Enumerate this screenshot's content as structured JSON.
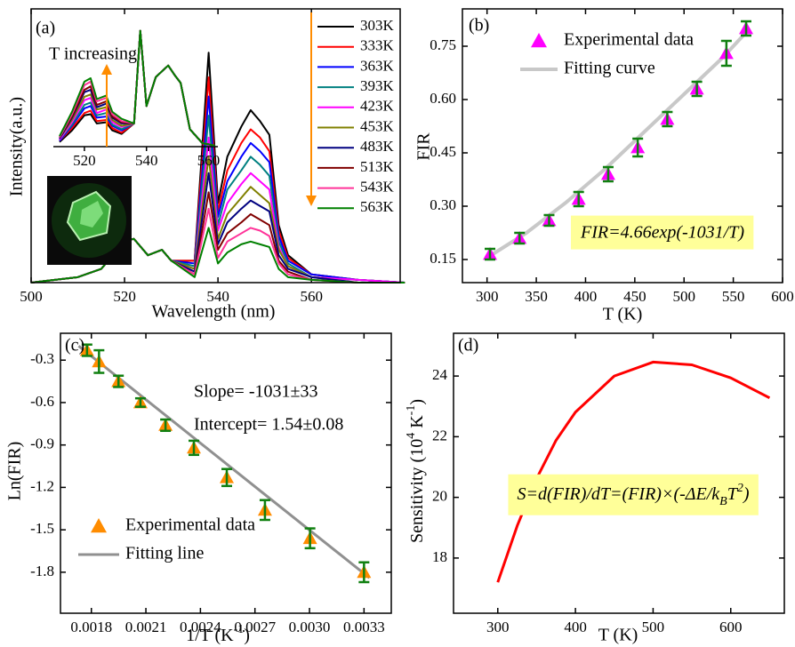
{
  "chart_data": [
    {
      "type": "line",
      "panel_label": "(a)",
      "xlabel": "Wavelength (nm)",
      "ylabel": "Intensity(a.u.)",
      "xlim": [
        500,
        579
      ],
      "ylim": [
        0,
        1
      ],
      "xticks": [
        500,
        520,
        540,
        560
      ],
      "x": [
        500,
        510,
        515,
        520,
        522,
        525,
        528,
        530,
        535,
        538,
        540,
        542,
        545,
        547,
        549,
        551,
        553,
        555,
        560,
        570,
        580
      ],
      "series": [
        {
          "name": "303K",
          "color": "#000000",
          "values": [
            0,
            0.02,
            0.05,
            0.15,
            0.16,
            0.1,
            0.12,
            0.08,
            0.08,
            0.84,
            0.29,
            0.46,
            0.57,
            0.63,
            0.59,
            0.54,
            0.21,
            0.1,
            0.03,
            0.01,
            0
          ]
        },
        {
          "name": "333K",
          "color": "#ff0000",
          "values": [
            0,
            0.02,
            0.05,
            0.15,
            0.16,
            0.1,
            0.12,
            0.08,
            0.08,
            0.75,
            0.26,
            0.41,
            0.51,
            0.56,
            0.53,
            0.48,
            0.19,
            0.09,
            0.03,
            0.01,
            0
          ]
        },
        {
          "name": "363K",
          "color": "#0000ff",
          "values": [
            0,
            0.02,
            0.05,
            0.15,
            0.16,
            0.1,
            0.12,
            0.08,
            0.07,
            0.68,
            0.24,
            0.37,
            0.46,
            0.51,
            0.48,
            0.44,
            0.17,
            0.08,
            0.03,
            0.01,
            0
          ]
        },
        {
          "name": "393K",
          "color": "#008080",
          "values": [
            0,
            0.02,
            0.05,
            0.15,
            0.16,
            0.1,
            0.12,
            0.08,
            0.06,
            0.61,
            0.21,
            0.34,
            0.41,
            0.46,
            0.43,
            0.39,
            0.15,
            0.07,
            0.02,
            0.01,
            0
          ]
        },
        {
          "name": "423K",
          "color": "#ff00ff",
          "values": [
            0,
            0.02,
            0.05,
            0.15,
            0.16,
            0.1,
            0.12,
            0.08,
            0.05,
            0.53,
            0.19,
            0.29,
            0.36,
            0.4,
            0.37,
            0.34,
            0.13,
            0.06,
            0.02,
            0.01,
            0
          ]
        },
        {
          "name": "453K",
          "color": "#808000",
          "values": [
            0,
            0.02,
            0.05,
            0.15,
            0.16,
            0.1,
            0.12,
            0.08,
            0.05,
            0.46,
            0.16,
            0.25,
            0.31,
            0.35,
            0.32,
            0.29,
            0.12,
            0.06,
            0.02,
            0,
            0
          ]
        },
        {
          "name": "483K",
          "color": "#000080",
          "values": [
            0,
            0.02,
            0.05,
            0.15,
            0.16,
            0.1,
            0.12,
            0.08,
            0.04,
            0.4,
            0.14,
            0.22,
            0.27,
            0.3,
            0.28,
            0.26,
            0.1,
            0.05,
            0.02,
            0,
            0
          ]
        },
        {
          "name": "513K",
          "color": "#800000",
          "values": [
            0,
            0.02,
            0.05,
            0.15,
            0.16,
            0.1,
            0.12,
            0.08,
            0.03,
            0.33,
            0.12,
            0.18,
            0.22,
            0.25,
            0.23,
            0.21,
            0.08,
            0.04,
            0.01,
            0,
            0
          ]
        },
        {
          "name": "543K",
          "color": "#ff3399",
          "values": [
            0,
            0.02,
            0.05,
            0.15,
            0.16,
            0.1,
            0.12,
            0.08,
            0.03,
            0.27,
            0.09,
            0.15,
            0.18,
            0.2,
            0.19,
            0.17,
            0.07,
            0.03,
            0.01,
            0,
            0
          ]
        },
        {
          "name": "563K",
          "color": "#008000",
          "values": [
            0,
            0.02,
            0.05,
            0.15,
            0.16,
            0.1,
            0.12,
            0.08,
            0.02,
            0.2,
            0.07,
            0.11,
            0.14,
            0.15,
            0.14,
            0.13,
            0.05,
            0.02,
            0.01,
            0,
            0
          ]
        }
      ],
      "inset": {
        "xlim": [
          510,
          563
        ],
        "ylim": [
          0,
          1.05
        ],
        "xticks": [
          520,
          540,
          560
        ],
        "x": [
          512,
          516,
          520,
          522,
          524,
          527,
          529,
          532,
          536,
          538,
          540,
          543,
          545,
          547,
          549,
          551,
          554,
          558,
          562
        ],
        "series": [
          {
            "color": "#000000",
            "values": [
              0.04,
              0.14,
              0.27,
              0.28,
              0.2,
              0.21,
              0.14,
              0.11,
              0.2,
              1,
              0.35,
              0.6,
              0.65,
              0.7,
              0.62,
              0.55,
              0.15,
              0.03,
              0.01
            ]
          },
          {
            "color": "#ff0000",
            "values": [
              0.05,
              0.16,
              0.29,
              0.31,
              0.22,
              0.23,
              0.16,
              0.12,
              0.2,
              1,
              0.35,
              0.6,
              0.65,
              0.7,
              0.62,
              0.55,
              0.15,
              0.03,
              0.01
            ]
          },
          {
            "color": "#0000ff",
            "values": [
              0.05,
              0.18,
              0.33,
              0.35,
              0.25,
              0.26,
              0.18,
              0.14,
              0.2,
              1,
              0.35,
              0.6,
              0.65,
              0.7,
              0.62,
              0.55,
              0.15,
              0.03,
              0.01
            ]
          },
          {
            "color": "#008080",
            "values": [
              0.06,
              0.19,
              0.36,
              0.38,
              0.27,
              0.29,
              0.19,
              0.15,
              0.2,
              1,
              0.35,
              0.6,
              0.65,
              0.7,
              0.62,
              0.55,
              0.15,
              0.03,
              0.01
            ]
          },
          {
            "color": "#ff00ff",
            "values": [
              0.06,
              0.21,
              0.4,
              0.42,
              0.29,
              0.32,
              0.21,
              0.17,
              0.2,
              1,
              0.35,
              0.6,
              0.65,
              0.7,
              0.62,
              0.55,
              0.15,
              0.03,
              0.01
            ]
          },
          {
            "color": "#808000",
            "values": [
              0.07,
              0.23,
              0.43,
              0.45,
              0.32,
              0.34,
              0.23,
              0.18,
              0.2,
              1,
              0.35,
              0.6,
              0.65,
              0.7,
              0.62,
              0.55,
              0.15,
              0.03,
              0.01
            ]
          },
          {
            "color": "#000080",
            "values": [
              0.07,
              0.25,
              0.47,
              0.49,
              0.34,
              0.37,
              0.25,
              0.2,
              0.2,
              1,
              0.35,
              0.6,
              0.65,
              0.7,
              0.62,
              0.55,
              0.15,
              0.03,
              0.01
            ]
          },
          {
            "color": "#800000",
            "values": [
              0.08,
              0.26,
              0.49,
              0.52,
              0.36,
              0.39,
              0.26,
              0.21,
              0.2,
              1,
              0.35,
              0.6,
              0.65,
              0.7,
              0.62,
              0.55,
              0.15,
              0.03,
              0.01
            ]
          },
          {
            "color": "#ff3399",
            "values": [
              0.08,
              0.28,
              0.53,
              0.56,
              0.39,
              0.42,
              0.28,
              0.22,
              0.2,
              1,
              0.35,
              0.6,
              0.65,
              0.7,
              0.62,
              0.55,
              0.15,
              0.03,
              0.01
            ]
          },
          {
            "color": "#008000",
            "values": [
              0.09,
              0.3,
              0.56,
              0.59,
              0.41,
              0.44,
              0.3,
              0.24,
              0.2,
              1,
              0.35,
              0.6,
              0.65,
              0.7,
              0.62,
              0.55,
              0.15,
              0.03,
              0.01
            ]
          }
        ]
      },
      "annotations": [
        "T increasing"
      ],
      "legend": "upper right"
    },
    {
      "type": "scatter",
      "panel_label": "(b)",
      "xlabel": "T (K)",
      "ylabel": "FIR",
      "xlim": [
        275,
        600
      ],
      "ylim": [
        0.085,
        0.855
      ],
      "xticks": [
        300,
        350,
        400,
        450,
        500,
        550,
        600
      ],
      "yticks": [
        0.15,
        {
          "value": 0.3,
          "label": "0.30"
        },
        0.45,
        {
          "value": 0.6,
          "label": "0.60"
        },
        0.75
      ],
      "x": [
        303,
        333,
        363,
        393,
        423,
        453,
        483,
        513,
        543,
        563
      ],
      "series": [
        {
          "name": "Experimental data",
          "color": "#ff00ff",
          "values": [
            0.165,
            0.21,
            0.26,
            0.32,
            0.39,
            0.465,
            0.545,
            0.63,
            0.73,
            0.8
          ],
          "errors": [
            0.015,
            0.015,
            0.015,
            0.02,
            0.02,
            0.025,
            0.02,
            0.02,
            0.035,
            0.02
          ],
          "error_color": "#108010"
        },
        {
          "name": "Fitting curve",
          "color": "#c8c8c8",
          "x": [
            300,
            340,
            380,
            420,
            460,
            500,
            540,
            565
          ],
          "values": [
            0.155,
            0.225,
            0.31,
            0.405,
            0.51,
            0.615,
            0.72,
            0.795
          ]
        }
      ],
      "annotations": [
        "FIR=4.66exp(-1031/T)"
      ],
      "annotation_box_color": "#ffff99",
      "legend": "upper left"
    },
    {
      "type": "scatter",
      "panel_label": "(c)",
      "xlabel": [
        "1/T (K",
        {
          "sup": "-1"
        },
        ")"
      ],
      "ylabel": "Ln(FIR)",
      "xlim": [
        0.00163,
        0.00345
      ],
      "ylim": [
        -2.09,
        -0.11
      ],
      "xticks": [
        0.0018,
        0.0021,
        0.0024,
        0.0027,
        {
          "value": 0.003,
          "label": "0.0030"
        },
        0.0033
      ],
      "yticks": [
        -0.3,
        -0.6,
        -0.9,
        -1.2,
        -1.5,
        -1.8
      ],
      "x": [
        0.001776,
        0.001842,
        0.001949,
        0.00207,
        0.002208,
        0.002364,
        0.002545,
        0.002755,
        0.003003,
        0.0033
      ],
      "series": [
        {
          "name": "Experimental data",
          "color": "#ff8c00",
          "values": [
            -0.23,
            -0.31,
            -0.45,
            -0.6,
            -0.76,
            -0.92,
            -1.13,
            -1.36,
            -1.56,
            -1.8
          ],
          "errors": [
            0.04,
            0.08,
            0.04,
            0.03,
            0.04,
            0.05,
            0.06,
            0.07,
            0.07,
            0.07
          ],
          "error_color": "#108010"
        },
        {
          "name": "Fitting line",
          "color": "#909090",
          "x": [
            0.00173,
            0.00333
          ],
          "values": [
            -0.2,
            -1.84
          ]
        }
      ],
      "annotations": [
        "Slope= -1031±33",
        "Intercept= 1.54±0.08"
      ],
      "legend": "lower left"
    },
    {
      "type": "line",
      "panel_label": "(d)",
      "xlabel": "T (K)",
      "ylabel": [
        "Sensitivity (10",
        {
          "sup": "4"
        },
        " K",
        {
          "sup": "-1"
        },
        ")"
      ],
      "xlim": [
        243,
        669
      ],
      "ylim": [
        16.18,
        25.41
      ],
      "xticks": [
        300,
        400,
        500,
        600
      ],
      "yticks": [
        18,
        20,
        22,
        24
      ],
      "x": [
        300,
        325,
        350,
        375,
        400,
        450,
        500,
        550,
        600,
        650
      ],
      "series": [
        {
          "color": "#ff0000",
          "values": [
            17.2,
            19.06,
            20.62,
            21.88,
            22.81,
            24.0,
            24.46,
            24.37,
            23.94,
            23.28
          ]
        }
      ],
      "annotations": [
        [
          "S=d(FIR)/dT=(FIR)×(-ΔE/k",
          {
            "sub": "B"
          },
          "T",
          {
            "sup": "2"
          },
          ")"
        ]
      ],
      "annotation_box_color": "#ffff99"
    }
  ]
}
